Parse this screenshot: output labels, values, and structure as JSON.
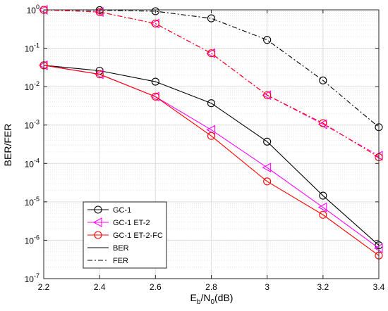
{
  "chart_data": {
    "type": "line",
    "xlabel": {
      "main": "E",
      "sub": "b",
      "mid": "/N",
      "sub2": "0",
      "tail": "(dB)"
    },
    "ylabel": "BER/FER",
    "xlim": [
      2.2,
      3.4
    ],
    "ylim_log10": [
      -7,
      0
    ],
    "y_scale": "log",
    "grid": true,
    "x_ticks": [
      {
        "v": 2.2,
        "label": "2.2"
      },
      {
        "v": 2.4,
        "label": "2.4"
      },
      {
        "v": 2.6,
        "label": "2.6"
      },
      {
        "v": 2.8,
        "label": "2.8"
      },
      {
        "v": 3.0,
        "label": "3"
      },
      {
        "v": 3.2,
        "label": "3.2"
      },
      {
        "v": 3.4,
        "label": "3.4"
      }
    ],
    "y_ticks": [
      {
        "exp": 0,
        "base": "10",
        "sup": "0"
      },
      {
        "exp": -1,
        "base": "10",
        "sup": "-1"
      },
      {
        "exp": -2,
        "base": "10",
        "sup": "-2"
      },
      {
        "exp": -3,
        "base": "10",
        "sup": "-3"
      },
      {
        "exp": -4,
        "base": "10",
        "sup": "-4"
      },
      {
        "exp": -5,
        "base": "10",
        "sup": "-5"
      },
      {
        "exp": -6,
        "base": "10",
        "sup": "-6"
      },
      {
        "exp": -7,
        "base": "10",
        "sup": "-7"
      }
    ],
    "series": [
      {
        "name": "GC-1",
        "metric": "BER",
        "color": "#000000",
        "marker": "circle",
        "dash": "solid",
        "x": [
          2.2,
          2.4,
          2.6,
          2.8,
          3.0,
          3.2,
          3.4
        ],
        "y": [
          0.036,
          0.026,
          0.0135,
          0.0037,
          0.00037,
          1.45e-05,
          7.4e-07
        ]
      },
      {
        "name": "GC-1 ET-2",
        "metric": "BER",
        "color": "#ff00ff",
        "marker": "triangle-left",
        "dash": "solid",
        "x": [
          2.2,
          2.4,
          2.6,
          2.8,
          3.0,
          3.2,
          3.4
        ],
        "y": [
          0.036,
          0.021,
          0.0055,
          0.00075,
          7.8e-05,
          7.2e-06,
          6.2e-07
        ]
      },
      {
        "name": "GC-1 ET-2-FC",
        "metric": "BER",
        "color": "#ff0000",
        "marker": "circle",
        "dash": "solid",
        "x": [
          2.2,
          2.4,
          2.6,
          2.8,
          3.0,
          3.2,
          3.4
        ],
        "y": [
          0.036,
          0.021,
          0.0055,
          0.00052,
          3.4e-05,
          4.6e-06,
          4e-07
        ]
      },
      {
        "name": "GC-1",
        "metric": "FER",
        "color": "#000000",
        "marker": "circle",
        "dash": "dashdot",
        "x": [
          2.2,
          2.4,
          2.6,
          2.8,
          3.0,
          3.2,
          3.4
        ],
        "y": [
          1.0,
          0.98,
          0.92,
          0.6,
          0.165,
          0.0145,
          0.00088
        ]
      },
      {
        "name": "GC-1 ET-2",
        "metric": "FER",
        "color": "#ff00ff",
        "marker": "triangle-left",
        "dash": "dashdot",
        "x": [
          2.2,
          2.4,
          2.6,
          2.8,
          3.0,
          3.2,
          3.4
        ],
        "y": [
          1.0,
          0.88,
          0.44,
          0.074,
          0.006,
          0.00105,
          0.00016
        ]
      },
      {
        "name": "GC-1 ET-2-FC",
        "metric": "FER",
        "color": "#ff0000",
        "marker": "circle",
        "dash": "dashdot",
        "x": [
          2.2,
          2.4,
          2.6,
          2.8,
          3.0,
          3.2,
          3.4
        ],
        "y": [
          1.0,
          0.88,
          0.44,
          0.074,
          0.006,
          0.00112,
          0.000145
        ]
      }
    ],
    "legend": {
      "placement": "lower-left",
      "entries": [
        {
          "label": "GC-1",
          "color": "#000000",
          "marker": "circle",
          "dash": "solid"
        },
        {
          "label": "GC-1 ET-2",
          "color": "#ff00ff",
          "marker": "triangle-left",
          "dash": "solid"
        },
        {
          "label": "GC-1 ET-2-FC",
          "color": "#ff0000",
          "marker": "circle",
          "dash": "solid"
        },
        {
          "label": "BER",
          "color": "#000000",
          "marker": "none",
          "dash": "solid"
        },
        {
          "label": "FER",
          "color": "#000000",
          "marker": "none",
          "dash": "dashdot"
        }
      ]
    }
  }
}
